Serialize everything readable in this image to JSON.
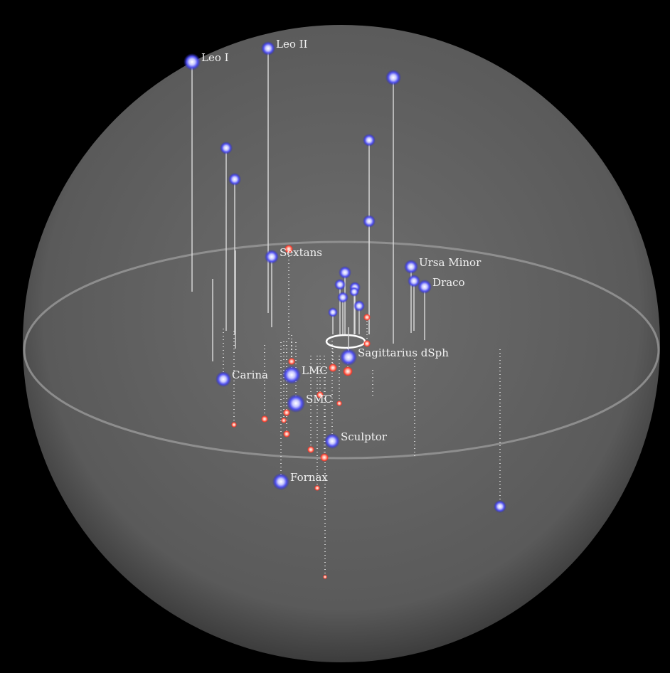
{
  "labels": [
    "Leo I",
    "Leo II",
    "Sextans",
    "Ursa Minor",
    "Draco",
    "Sagittarius dSph",
    "Carina",
    "LMC",
    "SMC",
    "Sculptor",
    "Fornax"
  ]
}
